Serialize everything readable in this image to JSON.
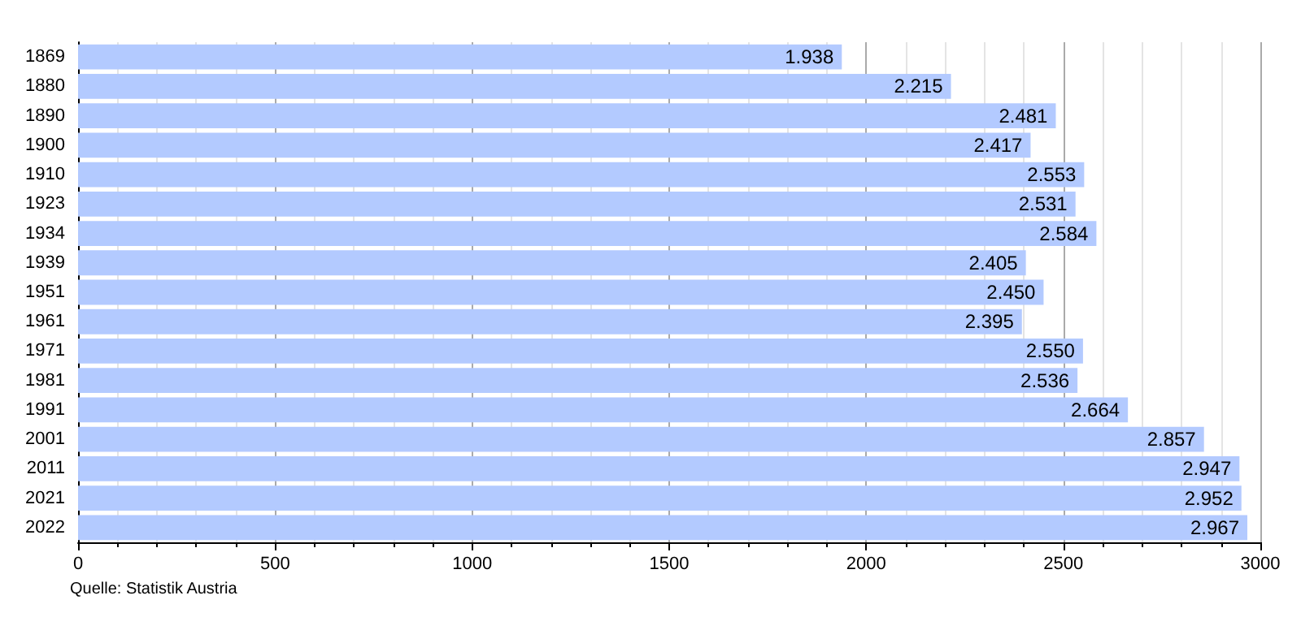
{
  "chart_data": {
    "type": "bar",
    "orientation": "horizontal",
    "categories": [
      "1869",
      "1880",
      "1890",
      "1900",
      "1910",
      "1923",
      "1934",
      "1939",
      "1951",
      "1961",
      "1971",
      "1981",
      "1991",
      "2001",
      "2011",
      "2021",
      "2022"
    ],
    "values": [
      1938,
      2215,
      2481,
      2417,
      2553,
      2531,
      2584,
      2405,
      2450,
      2395,
      2550,
      2536,
      2664,
      2857,
      2947,
      2952,
      2967
    ],
    "value_labels": [
      "1.938",
      "2.215",
      "2.481",
      "2.417",
      "2.553",
      "2.531",
      "2.584",
      "2.405",
      "2.450",
      "2.395",
      "2.550",
      "2.536",
      "2.664",
      "2.857",
      "2.947",
      "2.952",
      "2.967"
    ],
    "color": "#b3caff",
    "xlim": [
      0,
      3000
    ],
    "xticks": [
      0,
      500,
      1000,
      1500,
      2000,
      2500,
      3000
    ],
    "grid": "x",
    "annotations": [
      "Quelle: Statistik Austria"
    ]
  }
}
